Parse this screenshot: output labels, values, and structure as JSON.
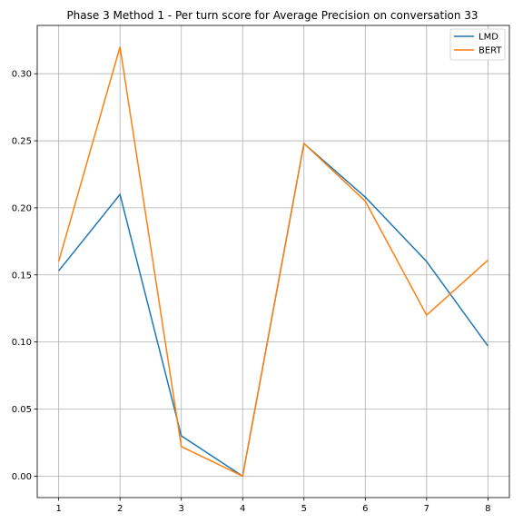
{
  "chart_data": {
    "type": "line",
    "title": "Phase 3 Method 1 - Per turn score for Average Precision on conversation 33",
    "x": [
      1,
      2,
      3,
      4,
      5,
      6,
      7,
      8
    ],
    "xticks": [
      "1",
      "2",
      "3",
      "4",
      "5",
      "6",
      "7",
      "8"
    ],
    "yticks": [
      "0.00",
      "0.05",
      "0.10",
      "0.15",
      "0.20",
      "0.25",
      "0.30"
    ],
    "xlim": [
      0.65,
      8.35
    ],
    "ylim": [
      -0.016,
      0.336
    ],
    "grid": true,
    "legend_position": "top-right",
    "series": [
      {
        "name": "LMD",
        "color": "#1f77b4",
        "values": [
          0.153,
          0.21,
          0.03,
          0.0,
          0.248,
          0.208,
          0.16,
          0.097
        ]
      },
      {
        "name": "BERT",
        "color": "#ff7f0e",
        "values": [
          0.16,
          0.32,
          0.022,
          0.0,
          0.248,
          0.205,
          0.12,
          0.161
        ]
      }
    ]
  }
}
